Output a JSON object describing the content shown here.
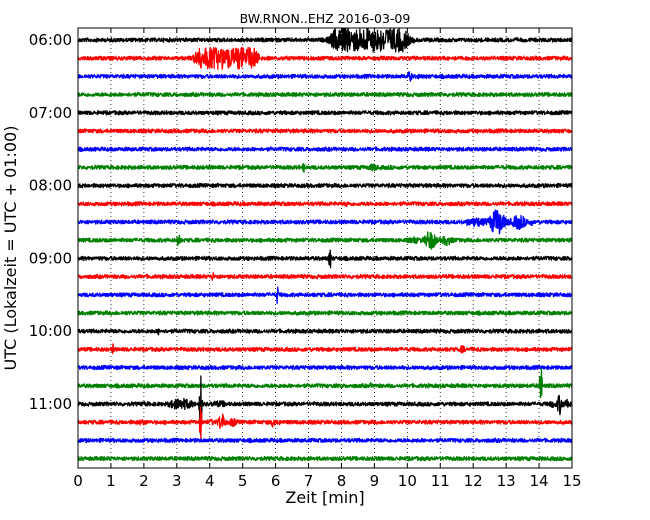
{
  "chart_data": {
    "type": "line",
    "title": "BW.RNON..EHZ 2016-03-09",
    "xlabel": "Zeit  [min]",
    "ylabel": "UTC (Lokalzeit = UTC + 01:00)",
    "xlim": [
      0,
      15
    ],
    "x_ticks": [
      "0",
      "1",
      "2",
      "3",
      "4",
      "5",
      "6",
      "7",
      "8",
      "9",
      "10",
      "11",
      "12",
      "13",
      "14",
      "15"
    ],
    "y_ticks": [
      "06:00",
      "07:00",
      "08:00",
      "09:00",
      "10:00",
      "11:00"
    ],
    "grid": "vertical dotted",
    "line_interval_minutes": 15,
    "start_time": "06:00",
    "trace_colors": [
      "#000000",
      "#ff0000",
      "#0000ff",
      "#008000"
    ],
    "traces": [
      {
        "start": "06:00",
        "events": [
          {
            "t": 7.5,
            "end": 10.2,
            "amp": 12,
            "kind": "block"
          }
        ]
      },
      {
        "start": "06:15",
        "events": [
          {
            "t": 3.4,
            "end": 5.6,
            "amp": 11,
            "kind": "block"
          }
        ]
      },
      {
        "start": "06:30",
        "events": [
          {
            "t": 9.7,
            "end": 10.5,
            "amp": 5,
            "kind": "burst"
          }
        ]
      },
      {
        "start": "06:45",
        "events": []
      },
      {
        "start": "07:00",
        "events": []
      },
      {
        "start": "07:15",
        "events": []
      },
      {
        "start": "07:30",
        "events": []
      },
      {
        "start": "07:45",
        "events": [
          {
            "t": 6.8,
            "end": 6.9,
            "amp": 6,
            "kind": "spike"
          },
          {
            "t": 8.2,
            "end": 9.8,
            "amp": 4,
            "kind": "burst"
          }
        ]
      },
      {
        "start": "08:00",
        "events": []
      },
      {
        "start": "08:15",
        "events": [
          {
            "t": 8.1,
            "end": 8.2,
            "amp": 4,
            "kind": "spike"
          }
        ]
      },
      {
        "start": "08:30",
        "events": [
          {
            "t": 11.8,
            "end": 13.8,
            "amp": 14,
            "kind": "burst"
          }
        ]
      },
      {
        "start": "08:45",
        "events": [
          {
            "t": 3.0,
            "end": 3.1,
            "amp": 12,
            "kind": "spike"
          },
          {
            "t": 10.0,
            "end": 11.5,
            "amp": 10,
            "kind": "burst"
          }
        ]
      },
      {
        "start": "09:00",
        "events": [
          {
            "t": 7.6,
            "end": 7.7,
            "amp": 13,
            "kind": "spike"
          }
        ]
      },
      {
        "start": "09:15",
        "events": [
          {
            "t": 3.9,
            "end": 4.3,
            "amp": 5,
            "kind": "burst"
          }
        ]
      },
      {
        "start": "09:30",
        "events": [
          {
            "t": 6.0,
            "end": 6.1,
            "amp": 10,
            "kind": "spike"
          }
        ]
      },
      {
        "start": "09:45",
        "events": []
      },
      {
        "start": "10:00",
        "events": [
          {
            "t": 2.3,
            "end": 2.6,
            "amp": 4,
            "kind": "burst"
          }
        ]
      },
      {
        "start": "10:15",
        "events": [
          {
            "t": 1.0,
            "end": 1.1,
            "amp": 6,
            "kind": "spike"
          },
          {
            "t": 11.3,
            "end": 12.1,
            "amp": 4,
            "kind": "burst"
          }
        ]
      },
      {
        "start": "10:30",
        "events": [
          {
            "t": 10.4,
            "end": 10.6,
            "amp": 4,
            "kind": "burst"
          }
        ]
      },
      {
        "start": "10:45",
        "events": [
          {
            "t": 14.0,
            "end": 14.1,
            "amp": 26,
            "kind": "spike"
          },
          {
            "t": 8.6,
            "end": 9.2,
            "amp": 3,
            "kind": "burst"
          }
        ]
      },
      {
        "start": "11:00",
        "events": [
          {
            "t": 3.7,
            "end": 3.75,
            "amp": 34,
            "kind": "spike"
          },
          {
            "t": 1.5,
            "end": 5.0,
            "amp": 6,
            "kind": "burst"
          },
          {
            "t": 14.3,
            "end": 15.0,
            "amp": 11,
            "kind": "burst"
          }
        ]
      },
      {
        "start": "11:15",
        "events": [
          {
            "t": 3.7,
            "end": 3.75,
            "amp": 18,
            "kind": "spike"
          },
          {
            "t": 3.9,
            "end": 4.9,
            "amp": 9,
            "kind": "burst"
          },
          {
            "t": 5.7,
            "end": 6.2,
            "amp": 7,
            "kind": "burst"
          },
          {
            "t": 1.0,
            "end": 3.0,
            "amp": 3,
            "kind": "burst"
          }
        ]
      },
      {
        "start": "11:30",
        "events": []
      },
      {
        "start": "11:45",
        "events": []
      }
    ]
  }
}
